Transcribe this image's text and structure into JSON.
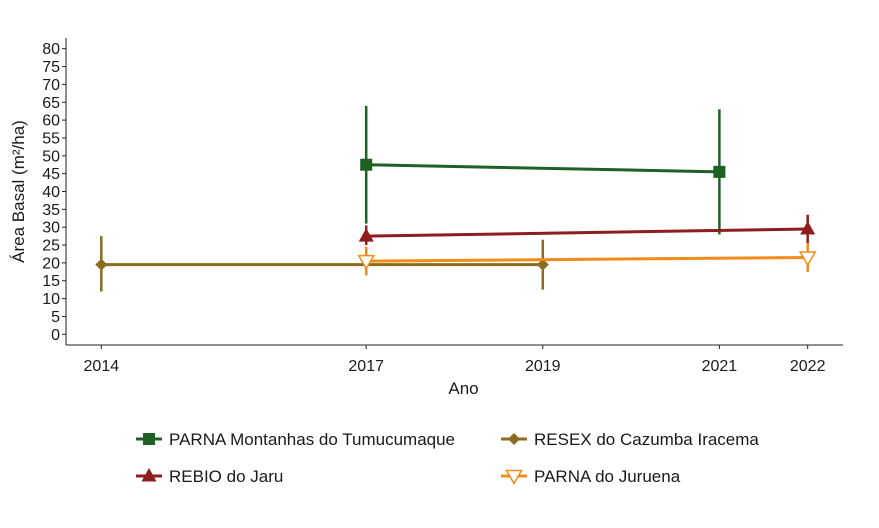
{
  "chart_data": {
    "type": "line",
    "xlabel": "Ano",
    "ylabel": "Área Basal (m²/ha)",
    "x_ticks": [
      2014,
      2017,
      2019,
      2021,
      2022
    ],
    "xlim": [
      2013.6,
      2022.4
    ],
    "ylim": [
      -3,
      83
    ],
    "y_ticks": [
      0,
      5,
      10,
      15,
      20,
      25,
      30,
      35,
      40,
      45,
      50,
      55,
      60,
      65,
      70,
      75,
      80
    ],
    "grid": false,
    "legend_position": "bottom",
    "series": [
      {
        "name": "PARNA Montanhas do Tumucumaque",
        "color": "#1f6024",
        "marker": "square",
        "x": [
          2017,
          2021
        ],
        "y": [
          47.5,
          45.5
        ],
        "err_low": [
          31,
          28
        ],
        "err_high": [
          64,
          63
        ]
      },
      {
        "name": "RESEX do Cazumba Iracema",
        "color": "#8b6b1e",
        "marker": "diamond",
        "x": [
          2014,
          2019
        ],
        "y": [
          19.5,
          19.5
        ],
        "err_low": [
          12,
          12.5
        ],
        "err_high": [
          27.5,
          26.5
        ]
      },
      {
        "name": "REBIO do Jaru",
        "color": "#8e1d1d",
        "marker": "triangle-up",
        "x": [
          2017,
          2022
        ],
        "y": [
          27.5,
          29.5
        ],
        "err_low": [
          25,
          25.5
        ],
        "err_high": [
          30.5,
          33.5
        ]
      },
      {
        "name": "PARNA do Juruena",
        "color": "#f28c18",
        "marker": "triangle-down-open",
        "x": [
          2017,
          2022
        ],
        "y": [
          20.5,
          21.5
        ],
        "err_low": [
          16.5,
          17.5
        ],
        "err_high": [
          24.5,
          25.5
        ]
      }
    ]
  }
}
